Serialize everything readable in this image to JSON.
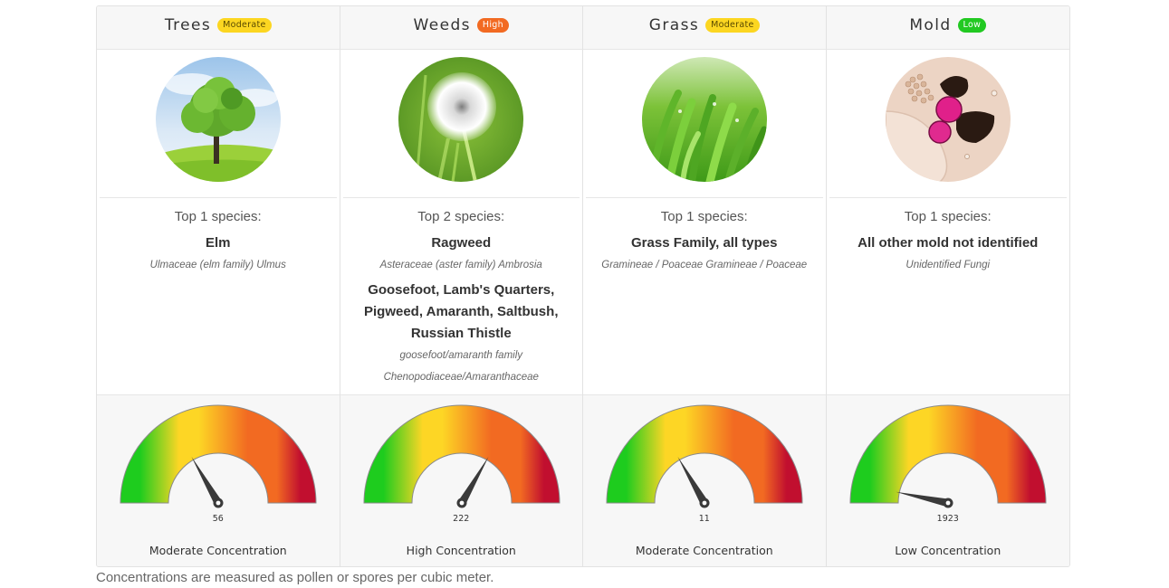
{
  "footnote": "Concentrations are measured as pollen or spores per cubic meter.",
  "gauge_colors": {
    "green": "#1ecc1e",
    "yellow": "#fdd625",
    "orange": "#f26a22",
    "red": "#c10f2f"
  },
  "categories": [
    {
      "name": "Trees",
      "level": "Moderate",
      "level_color": "#fcd621",
      "image": "tree-photo",
      "top_label": "Top 1 species:",
      "species": [
        {
          "name": "Elm",
          "latin": "Ulmaceae (elm family) Ulmus"
        }
      ],
      "gauge": {
        "value": "56",
        "angle_deg": 120,
        "label": "Moderate Concentration"
      }
    },
    {
      "name": "Weeds",
      "level": "High",
      "level_color": "#f26a22",
      "image": "dandelion-photo",
      "top_label": "Top 2 species:",
      "species": [
        {
          "name": "Ragweed",
          "latin": "Asteraceae (aster family) Ambrosia"
        },
        {
          "name": "Goosefoot, Lamb's Quarters, Pigweed, Amaranth, Saltbush, Russian Thistle",
          "latin": "goosefoot/amaranth family Chenopodiaceae/Amaranthaceae"
        }
      ],
      "gauge": {
        "value": "222",
        "angle_deg": 60,
        "label": "High Concentration"
      }
    },
    {
      "name": "Grass",
      "level": "Moderate",
      "level_color": "#fcd621",
      "image": "grass-photo",
      "top_label": "Top 1 species:",
      "species": [
        {
          "name": "Grass Family, all types",
          "latin": "Gramineae / Poaceae Gramineae / Poaceae"
        }
      ],
      "gauge": {
        "value": "11",
        "angle_deg": 120,
        "label": "Moderate Concentration"
      }
    },
    {
      "name": "Mold",
      "level": "Low",
      "level_color": "#22c922",
      "image": "mold-microscope-photo",
      "top_label": "Top 1 species:",
      "species": [
        {
          "name": "All other mold not identified",
          "latin": "Unidentified Fungi"
        }
      ],
      "gauge": {
        "value": "1923",
        "angle_deg": 168,
        "label": "Low Concentration"
      }
    }
  ]
}
